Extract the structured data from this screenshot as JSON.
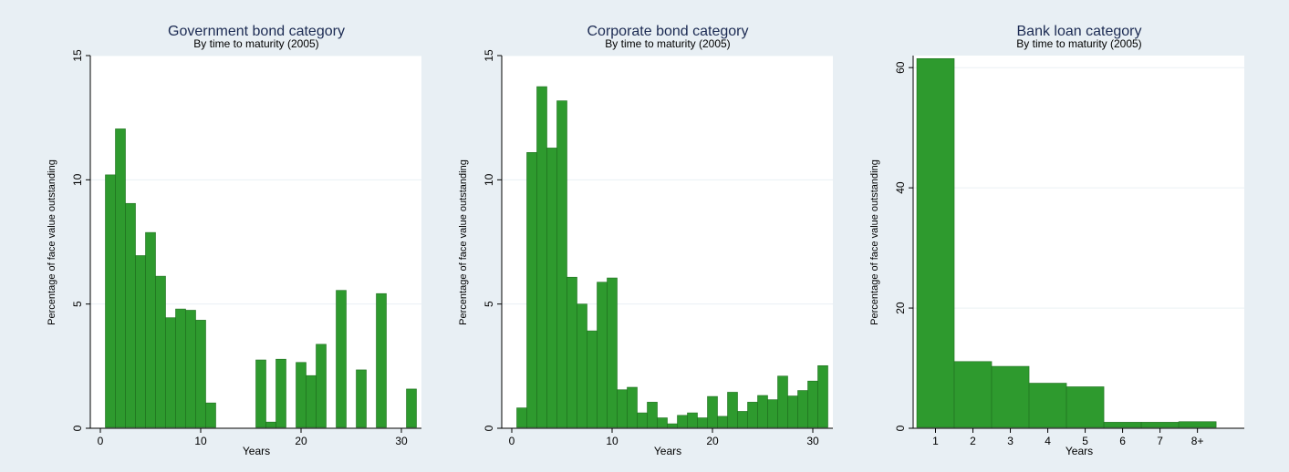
{
  "colors": {
    "bar": "#2e9a2e",
    "bar_edge": "#1f6f1f",
    "plot_bg": "#ffffff",
    "outer_bg": "#e8eff4",
    "grid": "#eaf0f4",
    "title": "#1b2a52"
  },
  "chart_data": [
    {
      "type": "bar",
      "title": "Government bond category",
      "subtitle": "By time to maturity (2005)",
      "xlabel": "Years",
      "ylabel": "Percentage of face value outstanding",
      "xlim": [
        -1,
        32
      ],
      "ylim": [
        0,
        15
      ],
      "xticks": [
        "0",
        "10",
        "20",
        "30"
      ],
      "yticks": [
        "0",
        "5",
        "10",
        "15"
      ],
      "x": [
        1,
        2,
        3,
        4,
        5,
        6,
        7,
        8,
        9,
        10,
        11,
        16,
        17,
        18,
        20,
        21,
        22,
        24,
        26,
        28,
        31
      ],
      "values": [
        10.2,
        12.05,
        9.05,
        6.95,
        7.88,
        6.12,
        4.45,
        4.8,
        4.75,
        4.35,
        1.02,
        2.75,
        0.25,
        2.78,
        2.65,
        2.12,
        3.38,
        5.55,
        2.35,
        5.42,
        1.58
      ],
      "grid": true
    },
    {
      "type": "bar",
      "title": "Corporate bond category",
      "subtitle": "By time to maturity (2005)",
      "xlabel": "Years",
      "ylabel": "Percentage of face value outstanding",
      "xlim": [
        -1,
        32
      ],
      "ylim": [
        0,
        15
      ],
      "xticks": [
        "0",
        "10",
        "20",
        "30"
      ],
      "yticks": [
        "0",
        "5",
        "10",
        "15"
      ],
      "x": [
        1,
        2,
        3,
        4,
        5,
        6,
        7,
        8,
        9,
        10,
        11,
        12,
        13,
        14,
        15,
        16,
        17,
        18,
        19,
        20,
        21,
        22,
        23,
        24,
        25,
        26,
        27,
        28,
        29,
        30,
        31
      ],
      "values": [
        0.82,
        11.1,
        13.75,
        11.28,
        13.18,
        6.08,
        5.0,
        3.92,
        5.88,
        6.05,
        1.55,
        1.65,
        0.62,
        1.05,
        0.42,
        0.18,
        0.52,
        0.62,
        0.42,
        1.28,
        0.48,
        1.45,
        0.68,
        1.05,
        1.32,
        1.15,
        2.1,
        1.3,
        1.52,
        1.9,
        2.52
      ],
      "grid": true
    },
    {
      "type": "bar",
      "title": "Bank loan category",
      "subtitle": "By time to maturity (2005)",
      "xlabel": "Years",
      "ylabel": "Percentage of face value outstanding",
      "ylim": [
        0,
        62
      ],
      "yticks": [
        "0",
        "20",
        "40",
        "60"
      ],
      "categories": [
        "1",
        "2",
        "3",
        "4",
        "5",
        "6",
        "7",
        "8+"
      ],
      "values": [
        61.5,
        11.1,
        10.3,
        7.5,
        6.9,
        1.0,
        1.0,
        1.1
      ],
      "grid": true
    }
  ]
}
